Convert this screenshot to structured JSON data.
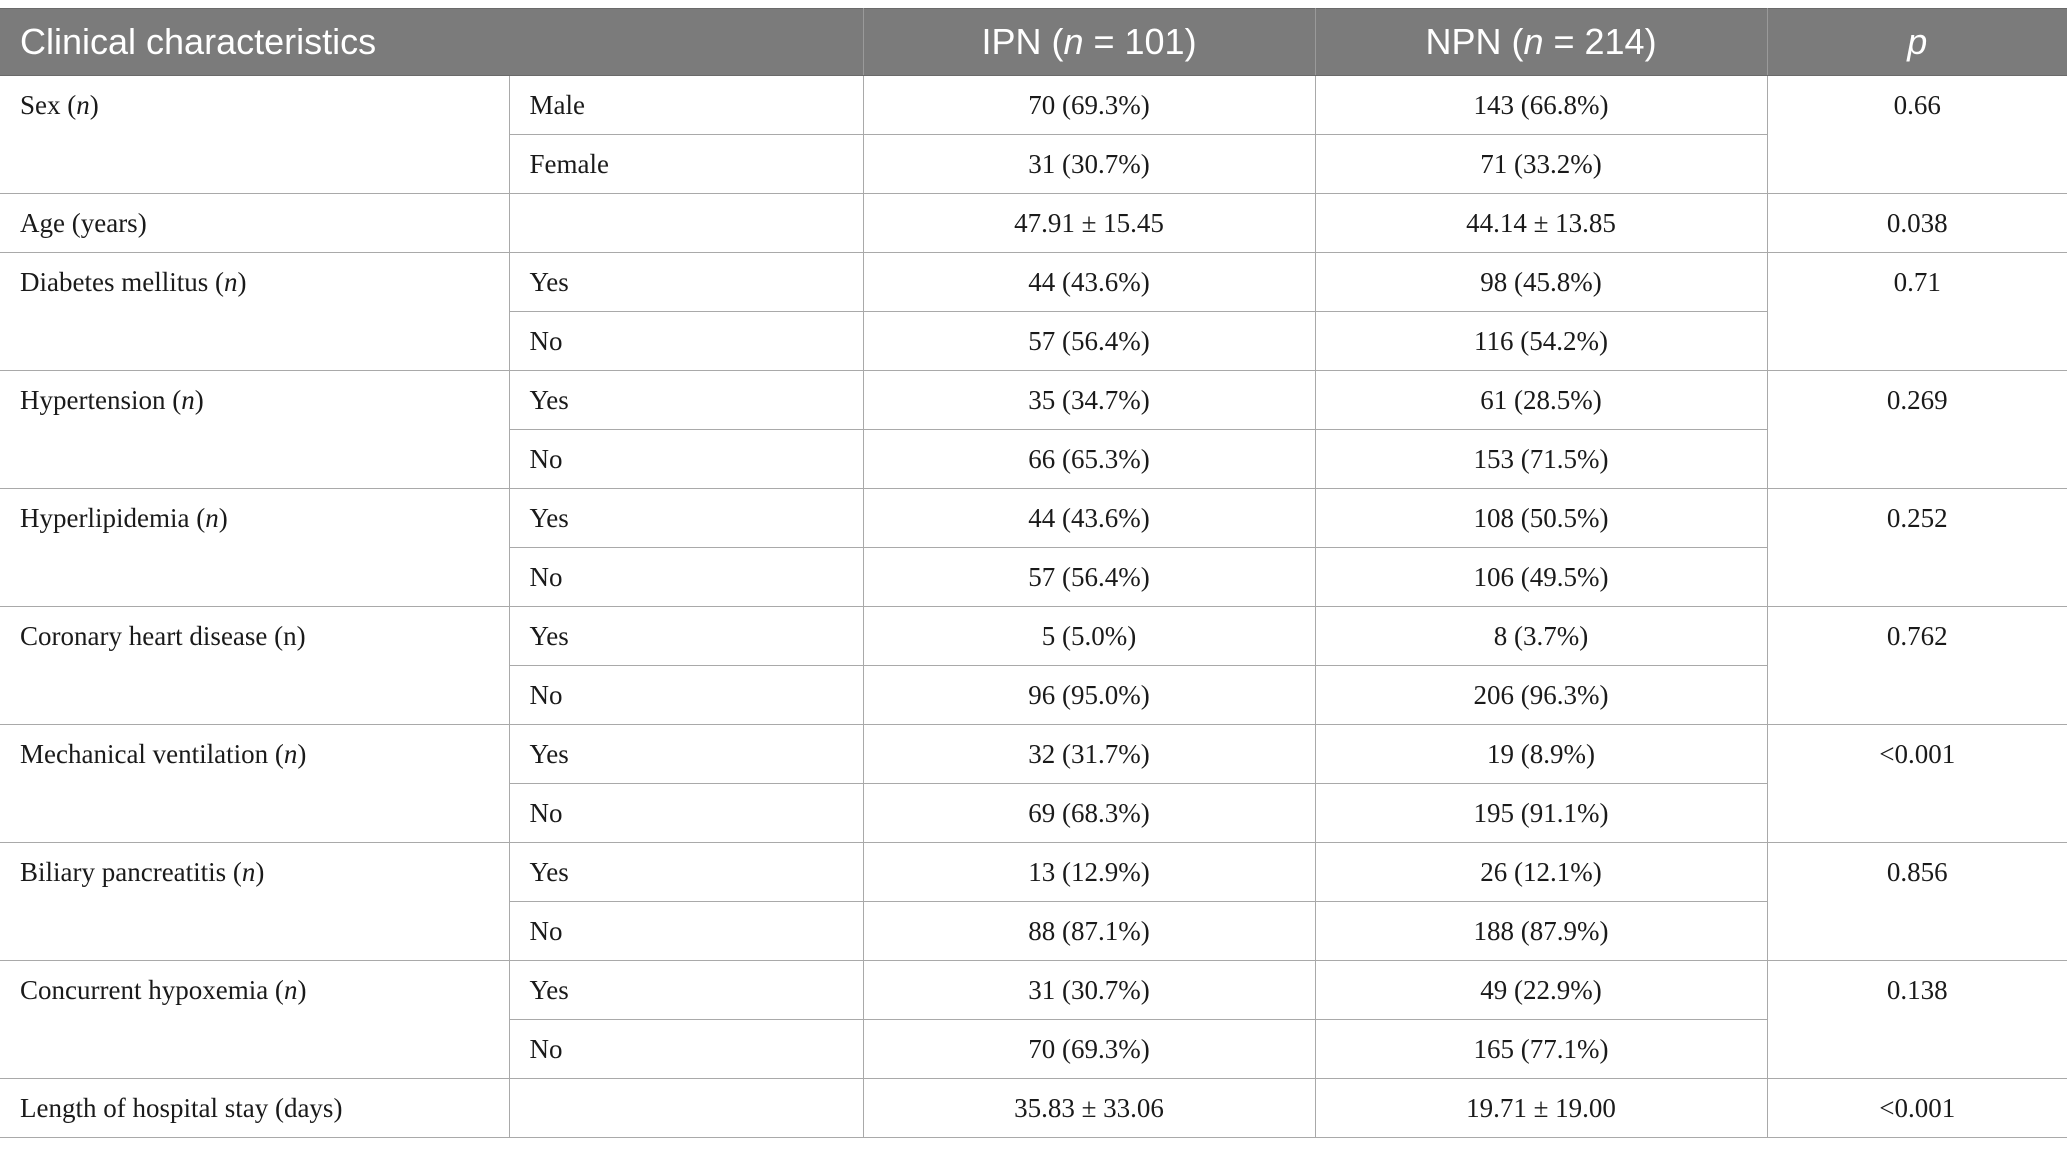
{
  "header": {
    "col1": "Clinical characteristics",
    "col2_prefix": "IPN (",
    "col2_var": "n",
    "col2_suffix": " = 101)",
    "col3_prefix": "NPN (",
    "col3_var": "n",
    "col3_suffix": " = 214)",
    "col4_var": "p"
  },
  "rows": [
    {
      "label": "Sex (",
      "label_var": "n",
      "label_end": ")",
      "p": "0.66",
      "sub": [
        {
          "name": "Male",
          "ipn": "70 (69.3%)",
          "npn": "143 (66.8%)"
        },
        {
          "name": "Female",
          "ipn": "31 (30.7%)",
          "npn": "71 (33.2%)"
        }
      ]
    },
    {
      "label": "Age (years)",
      "p": "0.038",
      "ipn": "47.91 ± 15.45",
      "npn": "44.14 ± 13.85"
    },
    {
      "label": "Diabetes mellitus (",
      "label_var": "n",
      "label_end": ")",
      "p": "0.71",
      "sub": [
        {
          "name": "Yes",
          "ipn": "44 (43.6%)",
          "npn": "98 (45.8%)"
        },
        {
          "name": "No",
          "ipn": "57 (56.4%)",
          "npn": "116 (54.2%)"
        }
      ]
    },
    {
      "label": "Hypertension (",
      "label_var": "n",
      "label_end": ")",
      "p": "0.269",
      "sub": [
        {
          "name": "Yes",
          "ipn": "35 (34.7%)",
          "npn": "61 (28.5%)"
        },
        {
          "name": "No",
          "ipn": "66 (65.3%)",
          "npn": "153 (71.5%)"
        }
      ]
    },
    {
      "label": "Hyperlipidemia (",
      "label_var": "n",
      "label_end": ")",
      "p": "0.252",
      "sub": [
        {
          "name": "Yes",
          "ipn": "44 (43.6%)",
          "npn": "108 (50.5%)"
        },
        {
          "name": "No",
          "ipn": "57 (56.4%)",
          "npn": "106 (49.5%)"
        }
      ]
    },
    {
      "label": "Coronary heart disease (n)",
      "p": "0.762",
      "sub": [
        {
          "name": "Yes",
          "ipn": "5 (5.0%)",
          "npn": "8 (3.7%)"
        },
        {
          "name": "No",
          "ipn": "96 (95.0%)",
          "npn": "206 (96.3%)"
        }
      ]
    },
    {
      "label": "Mechanical ventilation (",
      "label_var": "n",
      "label_end": ")",
      "p": "<0.001",
      "sub": [
        {
          "name": "Yes",
          "ipn": "32 (31.7%)",
          "npn": "19 (8.9%)"
        },
        {
          "name": "No",
          "ipn": "69 (68.3%)",
          "npn": "195 (91.1%)"
        }
      ]
    },
    {
      "label": "Biliary pancreatitis (",
      "label_var": "n",
      "label_end": ")",
      "p": "0.856",
      "sub": [
        {
          "name": "Yes",
          "ipn": "13 (12.9%)",
          "npn": "26 (12.1%)"
        },
        {
          "name": "No",
          "ipn": "88 (87.1%)",
          "npn": "188 (87.9%)"
        }
      ]
    },
    {
      "label": "Concurrent hypoxemia (",
      "label_var": "n",
      "label_end": ")",
      "p": "0.138",
      "sub": [
        {
          "name": "Yes",
          "ipn": "31 (30.7%)",
          "npn": "49 (22.9%)"
        },
        {
          "name": "No",
          "ipn": "70 (69.3%)",
          "npn": "165 (77.1%)"
        }
      ]
    },
    {
      "label": "Length of hospital stay (days)",
      "p": "<0.001",
      "ipn": "35.83 ± 33.06",
      "npn": "19.71 ± 19.00"
    }
  ]
}
